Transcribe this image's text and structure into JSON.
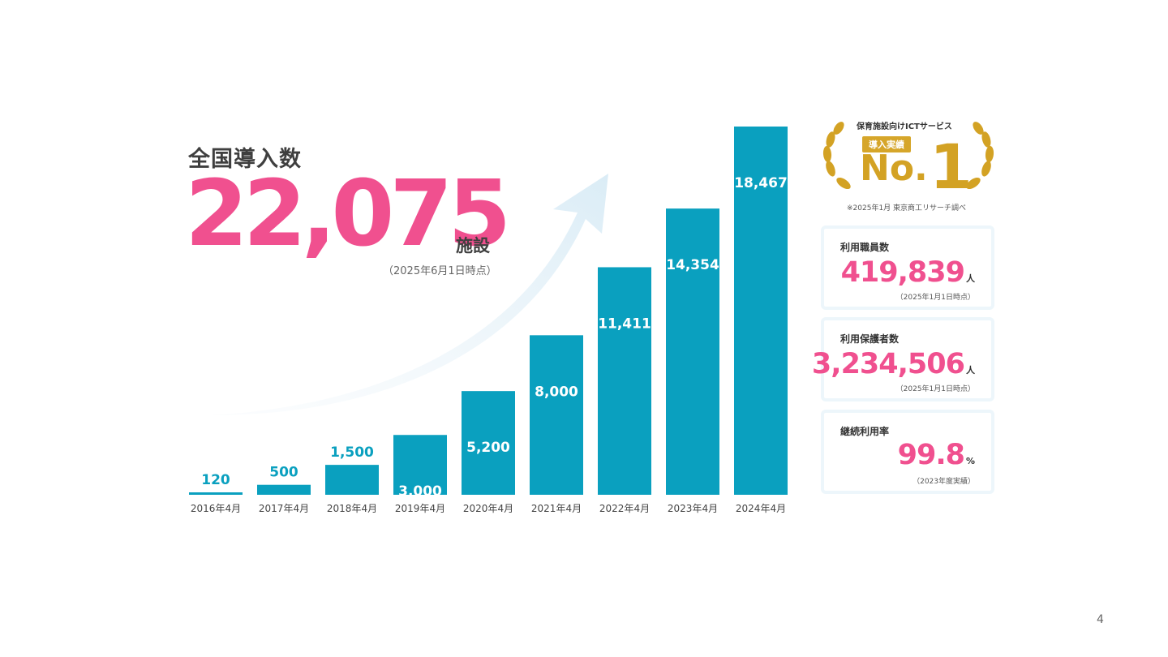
{
  "headline": {
    "title": "全国導入数",
    "value": "22,075",
    "unit": "施設",
    "note": "（2025年6月1日時点）"
  },
  "chart_data": {
    "type": "bar",
    "categories": [
      "2016年4月",
      "2017年4月",
      "2018年4月",
      "2019年4月",
      "2020年4月",
      "2021年4月",
      "2022年4月",
      "2023年4月",
      "2024年4月"
    ],
    "values": [
      120,
      500,
      1500,
      3000,
      5200,
      8000,
      11411,
      14354,
      18467
    ],
    "labels": [
      "120",
      "500",
      "1,500",
      "3,000",
      "5,200",
      "8,000",
      "11,411",
      "14,354",
      "18,467"
    ],
    "ylim": [
      0,
      18467
    ],
    "grid": false,
    "bar_color": "#0aa0bf",
    "label_color_inside": "#ffffff",
    "label_color_outside": "#0aa0bf"
  },
  "badge": {
    "caption": "保育施設向けICTサービス",
    "tag": "導入実績",
    "rank_prefix": "No.",
    "rank_number": "1",
    "source": "※2025年1月 東京商工リサーチ調べ",
    "color": "#d3a224"
  },
  "stats": [
    {
      "label": "利用職員数",
      "value": "419,839",
      "unit": "人",
      "note": "（2025年1月1日時点）"
    },
    {
      "label": "利用保護者数",
      "value": "3,234,506",
      "unit": "人",
      "note": "（2025年1月1日時点）"
    },
    {
      "label": "継続利用率",
      "value": "99.8",
      "unit": "%",
      "note": "（2023年度実績）"
    }
  ],
  "page_number": "4",
  "colors": {
    "accent_pink": "#f0508f",
    "bar_teal": "#0aa0bf",
    "gold": "#d3a224"
  }
}
